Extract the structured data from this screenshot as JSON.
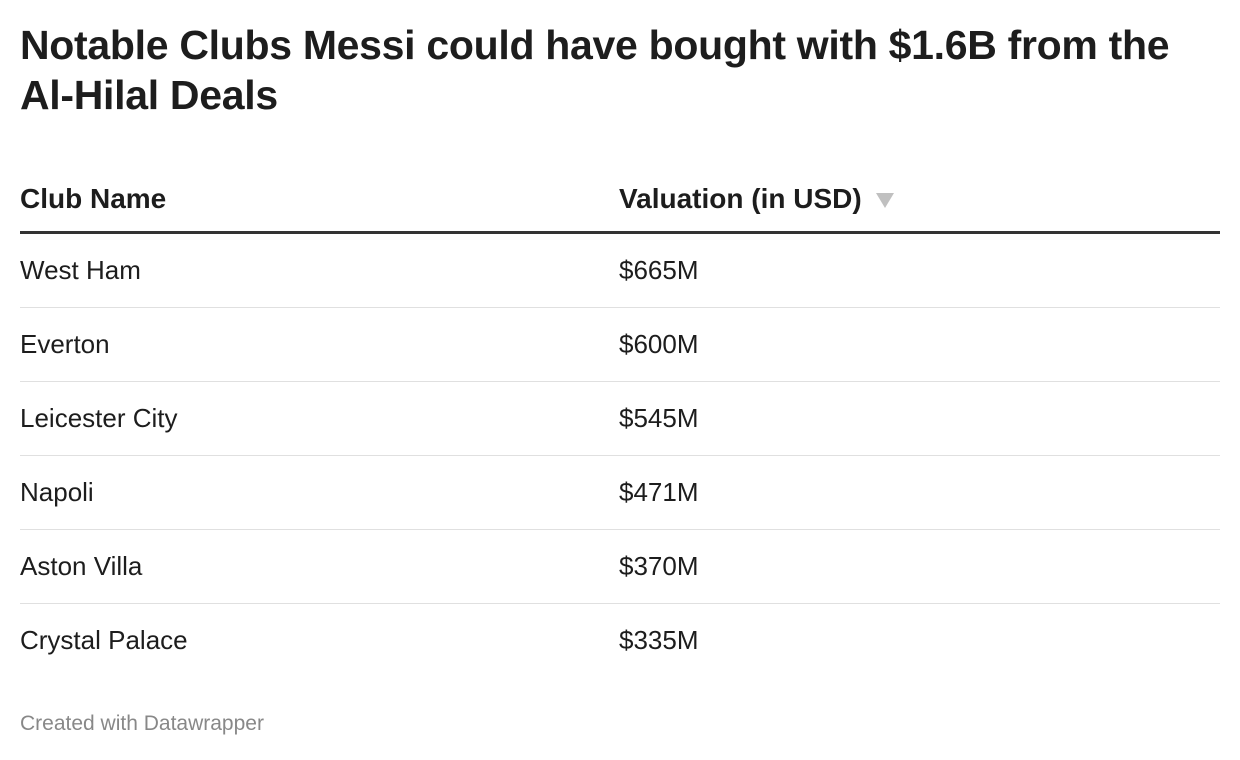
{
  "title": "Notable Clubs Messi could have bought with $1.6B from the Al-Hilal Deals",
  "footer": "Created with Datawrapper",
  "chart_data": {
    "type": "table",
    "title": "Notable Clubs Messi could have bought with $1.6B from the Al-Hilal Deals",
    "columns": [
      "Club Name",
      "Valuation (in USD)"
    ],
    "sort": {
      "column": "Valuation (in USD)",
      "order": "descending"
    },
    "rows": [
      {
        "club": "West Ham",
        "valuation": "$665M",
        "value": 665
      },
      {
        "club": "Everton",
        "valuation": "$600M",
        "value": 600
      },
      {
        "club": "Leicester City",
        "valuation": "$545M",
        "value": 545
      },
      {
        "club": "Napoli",
        "valuation": "$471M",
        "value": 471
      },
      {
        "club": "Aston Villa",
        "valuation": "$370M",
        "value": 370
      },
      {
        "club": "Crystal Palace",
        "valuation": "$335M",
        "value": 335
      }
    ]
  },
  "colors": {
    "text": "#1d1d1d",
    "header_rule": "#333333",
    "row_rule": "#e0e0e0",
    "sort_icon": "#c0c0c0",
    "footer": "#888888"
  },
  "icons": {
    "sort": "sort-descending-icon"
  }
}
